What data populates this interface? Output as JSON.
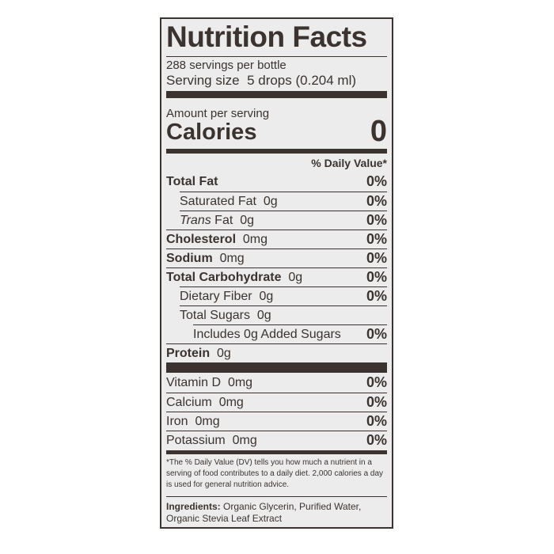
{
  "title": "Nutrition Facts",
  "servings": "288 servings per bottle",
  "serving_size": {
    "label": "Serving size",
    "value": "5 drops (0.204 ml)"
  },
  "amount_per_serving": "Amount per serving",
  "calories": {
    "label": "Calories",
    "value": "0"
  },
  "daily_value_header": "% Daily Value*",
  "nutrients": [
    {
      "name": "Total Fat",
      "bold": true,
      "dv": "0%"
    },
    {
      "name": "Saturated Fat",
      "amount": "0g",
      "indent": 1,
      "dv": "0%"
    },
    {
      "italic": "Trans",
      "name": "Fat",
      "amount": "0g",
      "indent": 1,
      "dv": "0%"
    },
    {
      "name": "Cholesterol",
      "bold": true,
      "amount": "0mg",
      "dv": "0%"
    },
    {
      "name": "Sodium",
      "bold": true,
      "amount": "0mg",
      "dv": "0%"
    },
    {
      "name": "Total Carbohydrate",
      "bold": true,
      "amount": "0g",
      "dv": "0%"
    },
    {
      "name": "Dietary Fiber",
      "amount": "0g",
      "indent": 1,
      "dv": "0%"
    },
    {
      "name": "Total Sugars",
      "amount": "0g",
      "indent": 1
    },
    {
      "name": "Includes 0g Added Sugars",
      "indent": 2,
      "dv": "0%"
    },
    {
      "name": "Protein",
      "bold": true,
      "amount": "0g"
    }
  ],
  "vitamins": [
    {
      "name": "Vitamin D",
      "amount": "0mg",
      "dv": "0%"
    },
    {
      "name": "Calcium",
      "amount": "0mg",
      "dv": "0%"
    },
    {
      "name": "Iron",
      "amount": "0mg",
      "dv": "0%"
    },
    {
      "name": "Potassium",
      "amount": "0mg",
      "dv": "0%"
    }
  ],
  "footnote": "*The % Daily Value (DV) tells you how much a nutrient in a serving of food contributes to a daily diet. 2,000 calories a day is used for general nutrition advice.",
  "ingredients": {
    "label": "Ingredients:",
    "text": "Organic Glycerin, Purified Water, Organic Stevia Leaf Extract"
  }
}
